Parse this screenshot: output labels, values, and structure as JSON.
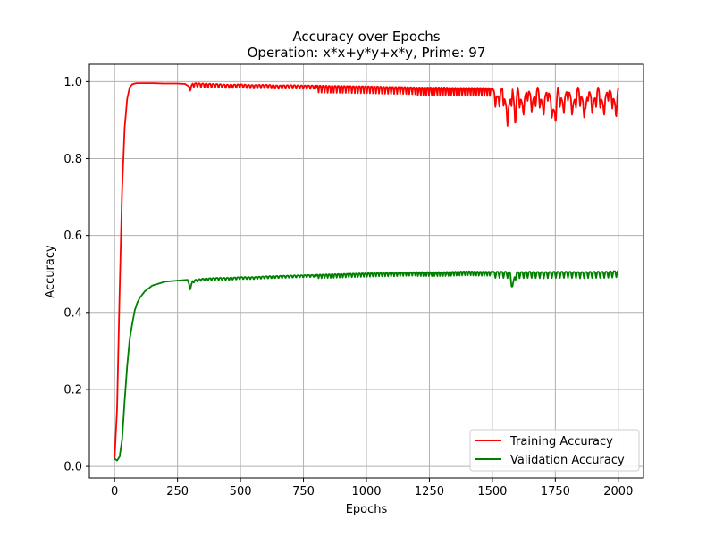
{
  "chart_data": {
    "type": "line",
    "title": "Accuracy over Epochs",
    "subtitle": "Operation: x*x+y*y+x*y, Prime: 97",
    "xlabel": "Epochs",
    "ylabel": "Accuracy",
    "xlim": [
      -100,
      2100
    ],
    "ylim": [
      -0.03,
      1.045
    ],
    "xticks": [
      0,
      250,
      500,
      750,
      1000,
      1250,
      1500,
      1750,
      2000
    ],
    "xtick_labels": [
      "0",
      "250",
      "500",
      "750",
      "1000",
      "1250",
      "1500",
      "1750",
      "2000"
    ],
    "yticks": [
      0.0,
      0.2,
      0.4,
      0.6,
      0.8,
      1.0
    ],
    "ytick_labels": [
      "0.0",
      "0.2",
      "0.4",
      "0.6",
      "0.8",
      "1.0"
    ],
    "grid": true,
    "legend_position": "lower-right",
    "series": [
      {
        "name": "Training Accuracy",
        "color": "#ff0000",
        "x": [
          0,
          10,
          20,
          30,
          40,
          50,
          60,
          70,
          80,
          90,
          100,
          120,
          150,
          200,
          250,
          280,
          300,
          310,
          320,
          350,
          400,
          450,
          500,
          550,
          600,
          650,
          700,
          750,
          800,
          850,
          900,
          950,
          1000,
          1050,
          1100,
          1150,
          1200,
          1250,
          1300,
          1350,
          1400,
          1450,
          1500,
          1520,
          1540,
          1560,
          1580,
          1590,
          1600,
          1620,
          1640,
          1660,
          1680,
          1700,
          1720,
          1740,
          1750,
          1760,
          1780,
          1800,
          1820,
          1840,
          1860,
          1870,
          1880,
          1900,
          1920,
          1940,
          1960,
          1980,
          1990,
          2000
        ],
        "y": [
          0.02,
          0.15,
          0.45,
          0.72,
          0.88,
          0.955,
          0.985,
          0.993,
          0.995,
          0.996,
          0.996,
          0.996,
          0.996,
          0.995,
          0.995,
          0.994,
          0.985,
          0.995,
          0.996,
          0.995,
          0.994,
          0.992,
          0.993,
          0.991,
          0.992,
          0.99,
          0.991,
          0.99,
          0.99,
          0.989,
          0.989,
          0.988,
          0.988,
          0.987,
          0.986,
          0.986,
          0.985,
          0.985,
          0.985,
          0.984,
          0.984,
          0.984,
          0.983,
          0.96,
          0.985,
          0.92,
          0.984,
          0.915,
          0.985,
          0.94,
          0.985,
          0.95,
          0.985,
          0.94,
          0.985,
          0.93,
          0.92,
          0.985,
          0.945,
          0.985,
          0.94,
          0.985,
          0.95,
          0.93,
          0.985,
          0.945,
          0.985,
          0.94,
          0.985,
          0.96,
          0.935,
          0.985
        ],
        "oscillation": [
          {
            "from": 300,
            "to": 800,
            "amplitude": 0.01,
            "period": 14
          },
          {
            "from": 800,
            "to": 1200,
            "amplitude": 0.018,
            "period": 12
          },
          {
            "from": 1200,
            "to": 1500,
            "amplitude": 0.022,
            "period": 11
          },
          {
            "from": 1500,
            "to": 2000,
            "amplitude": 0.035,
            "period": 16
          }
        ]
      },
      {
        "name": "Validation Accuracy",
        "color": "#008000",
        "x": [
          0,
          10,
          20,
          30,
          40,
          50,
          60,
          70,
          80,
          90,
          100,
          120,
          150,
          200,
          250,
          290,
          300,
          310,
          320,
          350,
          400,
          450,
          500,
          550,
          600,
          650,
          700,
          750,
          800,
          850,
          900,
          950,
          1000,
          1050,
          1100,
          1150,
          1200,
          1250,
          1300,
          1350,
          1400,
          1450,
          1500,
          1550,
          1570,
          1580,
          1590,
          1600,
          1650,
          1700,
          1750,
          1800,
          1850,
          1900,
          1950,
          2000
        ],
        "y": [
          0.02,
          0.015,
          0.025,
          0.07,
          0.17,
          0.26,
          0.33,
          0.37,
          0.405,
          0.425,
          0.438,
          0.455,
          0.47,
          0.48,
          0.483,
          0.485,
          0.465,
          0.482,
          0.485,
          0.488,
          0.49,
          0.49,
          0.492,
          0.492,
          0.494,
          0.495,
          0.496,
          0.497,
          0.498,
          0.499,
          0.5,
          0.501,
          0.502,
          0.503,
          0.503,
          0.504,
          0.505,
          0.505,
          0.505,
          0.506,
          0.507,
          0.506,
          0.506,
          0.506,
          0.505,
          0.47,
          0.5,
          0.505,
          0.506,
          0.505,
          0.506,
          0.506,
          0.505,
          0.506,
          0.506,
          0.508
        ],
        "oscillation": [
          {
            "from": 300,
            "to": 800,
            "amplitude": 0.006,
            "period": 14
          },
          {
            "from": 800,
            "to": 1200,
            "amplitude": 0.009,
            "period": 12
          },
          {
            "from": 1200,
            "to": 1500,
            "amplitude": 0.011,
            "period": 11
          },
          {
            "from": 1500,
            "to": 2000,
            "amplitude": 0.016,
            "period": 16
          }
        ]
      }
    ]
  }
}
